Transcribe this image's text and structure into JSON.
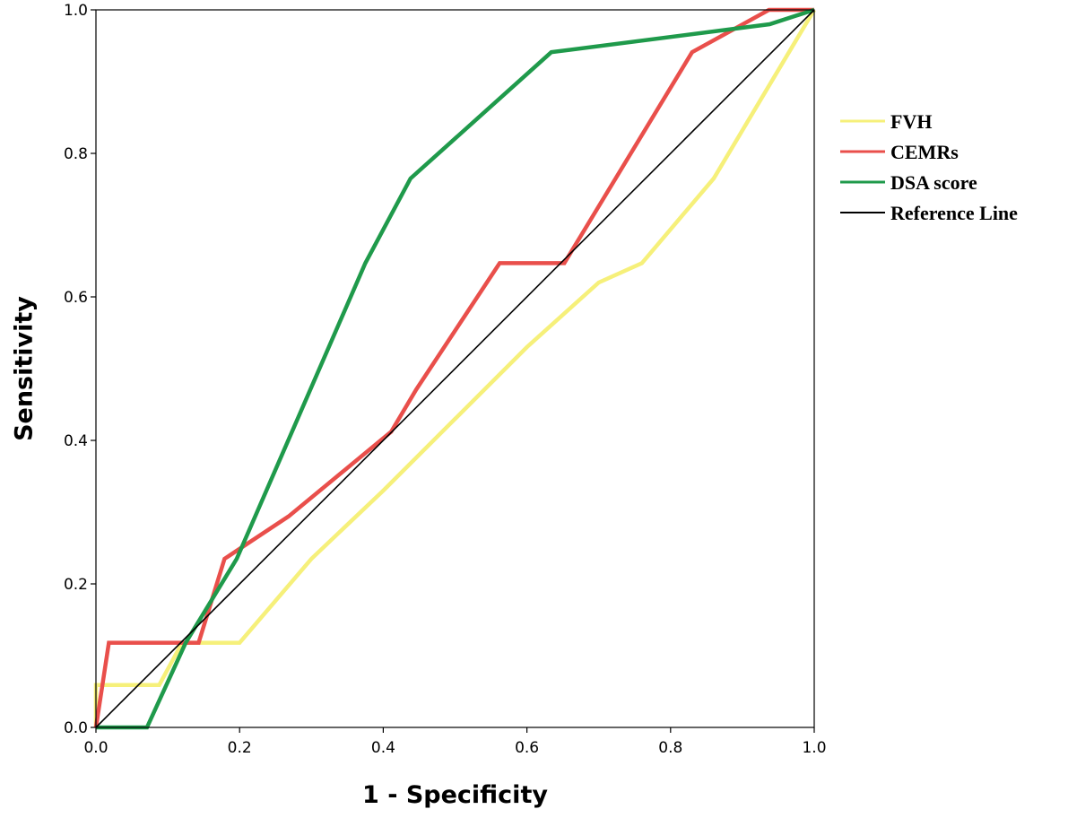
{
  "chart_data": {
    "type": "line",
    "title": "",
    "xlabel": "1 - Specificity",
    "ylabel": "Sensitivity",
    "xlim": [
      0,
      1
    ],
    "ylim": [
      0,
      1
    ],
    "xticks": [
      "0.0",
      "0.2",
      "0.4",
      "0.6",
      "0.8",
      "1.0"
    ],
    "yticks": [
      "0.0",
      "0.2",
      "0.4",
      "0.6",
      "0.8",
      "1.0"
    ],
    "grid": false,
    "legend_position": "right",
    "series": [
      {
        "name": "FVH",
        "color": "#f6f07a",
        "x": [
          0,
          0,
          0.088,
          0.12,
          0.2,
          0.3,
          0.4,
          0.5,
          0.6,
          0.7,
          0.76,
          0.86,
          1.0
        ],
        "y": [
          0,
          0.059,
          0.059,
          0.118,
          0.118,
          0.235,
          0.33,
          0.43,
          0.53,
          0.62,
          0.647,
          0.765,
          1.0
        ]
      },
      {
        "name": "CEMRs",
        "color": "#e94f4b",
        "x": [
          0,
          0.018,
          0.143,
          0.179,
          0.268,
          0.411,
          0.446,
          0.562,
          0.652,
          0.83,
          0.937,
          1.0
        ],
        "y": [
          0,
          0.118,
          0.118,
          0.235,
          0.294,
          0.412,
          0.471,
          0.647,
          0.647,
          0.941,
          1.0,
          1.0
        ]
      },
      {
        "name": "DSA score",
        "color": "#1f9a4b",
        "x": [
          0,
          0.071,
          0.125,
          0.196,
          0.375,
          0.438,
          0.634,
          0.938,
          1.0
        ],
        "y": [
          0,
          0,
          0.118,
          0.235,
          0.647,
          0.765,
          0.941,
          0.98,
          1.0
        ]
      },
      {
        "name": "Reference Line",
        "color": "#000000",
        "x": [
          0,
          1
        ],
        "y": [
          0,
          1
        ]
      }
    ]
  }
}
